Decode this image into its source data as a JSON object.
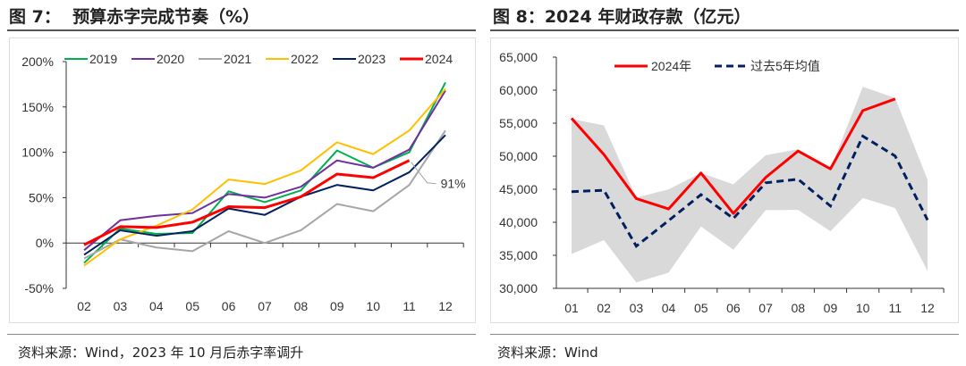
{
  "left": {
    "title": "图 7：  预算赤字完成节奏（%）",
    "source": "资料来源：Wind，2023 年 10 月后赤字率调升"
  },
  "right": {
    "title": "图 8：2024 年财政存款（亿元）",
    "source": "资料来源：Wind"
  },
  "chart_data": [
    {
      "type": "line",
      "title": "预算赤字完成节奏（%）",
      "categories": [
        "02",
        "03",
        "04",
        "05",
        "06",
        "07",
        "08",
        "09",
        "10",
        "11",
        "12"
      ],
      "ylim": [
        -50,
        200
      ],
      "yticks": [
        "-50%",
        "0%",
        "50%",
        "100%",
        "150%",
        "200%"
      ],
      "ytick_values": [
        -50,
        0,
        50,
        100,
        150,
        200
      ],
      "legend": "top",
      "series": [
        {
          "name": "2019",
          "color": "#00b050",
          "values": [
            -22,
            16,
            10,
            11,
            57,
            45,
            58,
            102,
            83,
            100,
            177
          ]
        },
        {
          "name": "2020",
          "color": "#7030a0",
          "values": [
            -8,
            25,
            30,
            33,
            54,
            50,
            62,
            91,
            83,
            103,
            168
          ]
        },
        {
          "name": "2021",
          "color": "#a6a6a6",
          "values": [
            -17,
            4,
            -5,
            -9,
            13,
            0,
            14,
            43,
            35,
            64,
            124
          ]
        },
        {
          "name": "2022",
          "color": "#ffc000",
          "values": [
            -25,
            4,
            19,
            37,
            70,
            65,
            80,
            111,
            98,
            124,
            170
          ]
        },
        {
          "name": "2023",
          "color": "#002060",
          "values": [
            -13,
            14,
            8,
            13,
            38,
            31,
            51,
            64,
            58,
            78,
            119
          ]
        },
        {
          "name": "2024",
          "color": "#ff0000",
          "values": [
            -2,
            18,
            17,
            23,
            40,
            39,
            51,
            76,
            72,
            91,
            null
          ]
        }
      ],
      "annotation": "91%"
    },
    {
      "type": "line",
      "title": "2024 年财政存款（亿元）",
      "categories": [
        "01",
        "02",
        "03",
        "04",
        "05",
        "06",
        "07",
        "08",
        "09",
        "10",
        "11",
        "12"
      ],
      "ylim": [
        30000,
        65000
      ],
      "yticks": [
        "30,000",
        "35,000",
        "40,000",
        "45,000",
        "50,000",
        "55,000",
        "60,000",
        "65,000"
      ],
      "ytick_values": [
        30000,
        35000,
        40000,
        45000,
        50000,
        55000,
        60000,
        65000
      ],
      "legend": "top",
      "series": [
        {
          "name": "2024年",
          "color": "#ff0000",
          "values": [
            55740,
            50250,
            43590,
            42020,
            47460,
            41340,
            46790,
            50790,
            48090,
            56910,
            58670,
            null
          ]
        },
        {
          "name": "过去5年均值",
          "color": "#002060",
          "dashed": true,
          "values": [
            44630,
            44850,
            36390,
            40260,
            44180,
            40580,
            45980,
            46520,
            42470,
            53040,
            50030,
            40350
          ]
        }
      ],
      "band": {
        "color": "#d9d9d9",
        "upper": [
          55650,
          54660,
          43730,
          44990,
          47460,
          45750,
          50160,
          51060,
          48090,
          60520,
          58800,
          46430
        ],
        "lower": [
          35180,
          37290,
          30900,
          32390,
          39360,
          35850,
          41840,
          41880,
          38640,
          43680,
          42150,
          32610
        ]
      }
    }
  ]
}
